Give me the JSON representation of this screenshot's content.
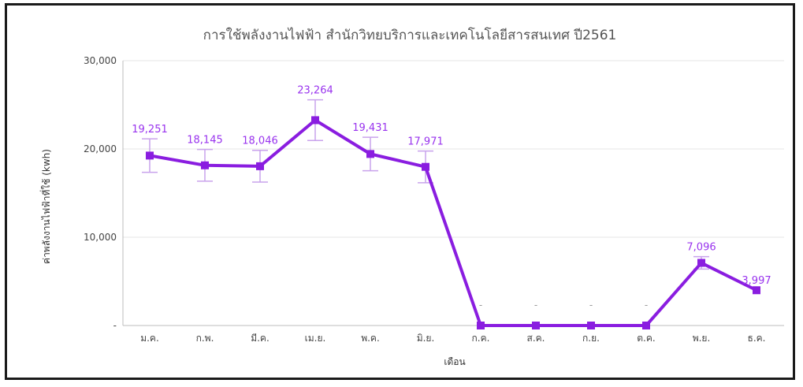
{
  "chart_data": {
    "type": "line",
    "title": "การใช้พลังงานไฟฟ้า สำนักวิทยบริการและเทคโนโลยีสารสนเทศ ปี2561",
    "xlabel": "เดือน",
    "ylabel": "ค่าพลังงานไฟฟ้าที่ใช้ (kwh)",
    "categories": [
      "ม.ค.",
      "ก.พ.",
      "มี.ค.",
      "เม.ย.",
      "พ.ค.",
      "มิ.ย.",
      "ก.ค.",
      "ส.ค.",
      "ก.ย.",
      "ต.ค.",
      "พ.ย.",
      "ธ.ค."
    ],
    "values": [
      19251,
      18145,
      18046,
      23264,
      19431,
      17971,
      0,
      0,
      0,
      0,
      7096,
      3997
    ],
    "data_labels": [
      "19,251",
      "18,145",
      "18,046",
      "23,264",
      "19,431",
      "17,971",
      "-",
      "-",
      "-",
      "-",
      "7,096",
      "3,997"
    ],
    "error_bars": [
      1900,
      1800,
      1800,
      2300,
      1900,
      1800,
      0,
      0,
      0,
      0,
      700,
      0
    ],
    "ylim": [
      0,
      30000
    ],
    "yticks": [
      0,
      10000,
      20000,
      30000
    ],
    "ytick_labels": [
      "-",
      "10,000",
      "20,000",
      "30,000"
    ],
    "grid": true,
    "legend": "none",
    "colors": {
      "series": "#8a1de0",
      "label": "#9933ee",
      "error_bar": "#c9a3ec",
      "grid": "#e4e4e4"
    }
  }
}
